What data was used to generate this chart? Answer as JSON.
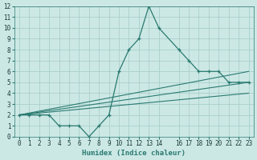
{
  "xlabel": "Humidex (Indice chaleur)",
  "bg_color": "#cce8e5",
  "grid_color": "#aacfcc",
  "line_color": "#2a7a70",
  "xlim": [
    -0.5,
    23.5
  ],
  "ylim": [
    0,
    12
  ],
  "xticks": [
    0,
    1,
    2,
    3,
    4,
    5,
    6,
    7,
    8,
    9,
    10,
    11,
    12,
    13,
    14,
    16,
    17,
    18,
    19,
    20,
    21,
    22,
    23
  ],
  "yticks": [
    0,
    1,
    2,
    3,
    4,
    5,
    6,
    7,
    8,
    9,
    10,
    11,
    12
  ],
  "series1_x": [
    0,
    1,
    2,
    3,
    4,
    5,
    6,
    7,
    8,
    9,
    10,
    11,
    12,
    13,
    14,
    16,
    17,
    18,
    19,
    20,
    21,
    22,
    23
  ],
  "series1_y": [
    2,
    2,
    2,
    2,
    1,
    1,
    1,
    0,
    1,
    2,
    6,
    8,
    9,
    12,
    10,
    8,
    7,
    6,
    6,
    6,
    5,
    5,
    5
  ],
  "series2_x": [
    0,
    23
  ],
  "series2_y": [
    2,
    5
  ],
  "series3_x": [
    0,
    23
  ],
  "series3_y": [
    2,
    6
  ],
  "series4_x": [
    0,
    23
  ],
  "series4_y": [
    2,
    4
  ],
  "xlabel_fontsize": 6.5,
  "tick_fontsize": 5.5
}
